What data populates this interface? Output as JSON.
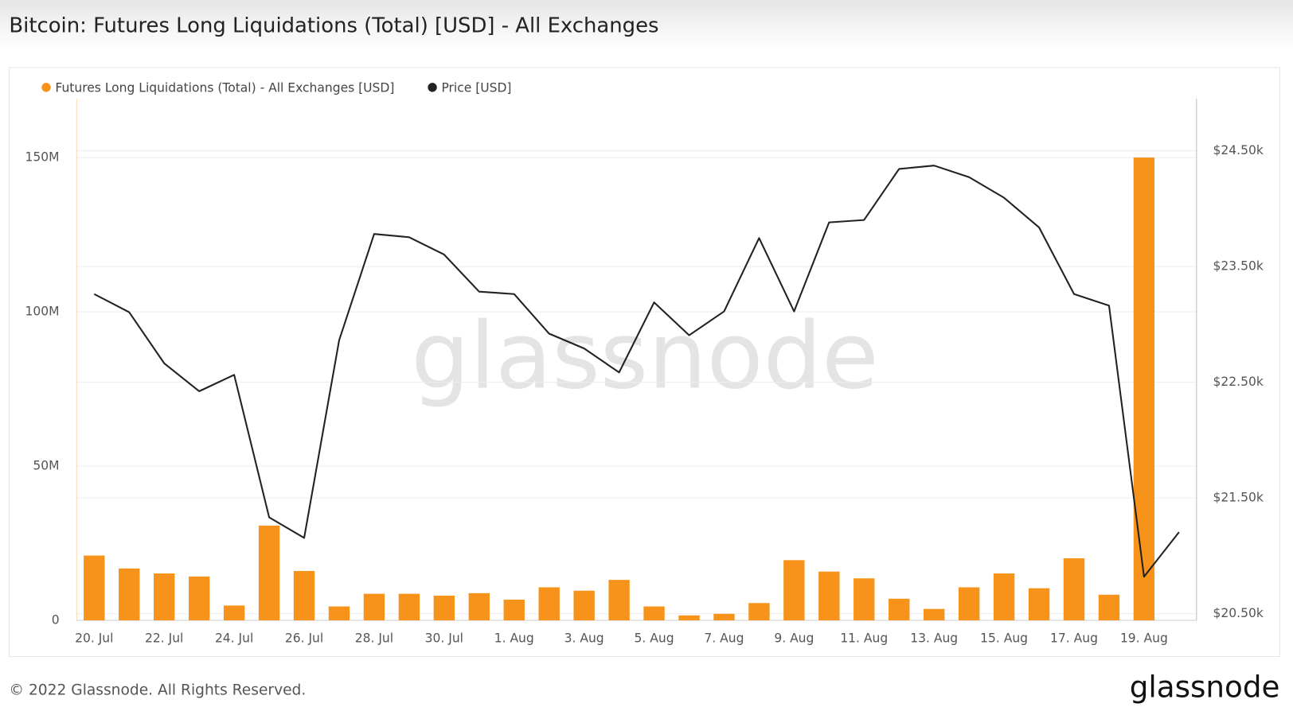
{
  "chart_data": {
    "type": "bar",
    "title": "Bitcoin: Futures Long Liquidations (Total) [USD] - All Exchanges",
    "categories": [
      "20. Jul",
      null,
      "22. Jul",
      null,
      "24. Jul",
      null,
      "26. Jul",
      null,
      "28. Jul",
      null,
      "30. Jul",
      null,
      "1. Aug",
      null,
      "3. Aug",
      null,
      "5. Aug",
      null,
      "7. Aug",
      null,
      "9. Aug",
      null,
      "11. Aug",
      null,
      "13. Aug",
      null,
      "15. Aug",
      null,
      "17. Aug",
      null,
      "19. Aug",
      null
    ],
    "series": [
      {
        "name": "Futures Long Liquidations (Total) - All Exchanges [USD]",
        "type": "bar",
        "color": "#f7931a",
        "values": [
          21000000,
          16800000,
          15200000,
          14200000,
          4800000,
          30700000,
          16000000,
          4500000,
          8600000,
          8600000,
          8000000,
          8800000,
          6700000,
          10700000,
          9600000,
          13100000,
          4500000,
          1600000,
          2100000,
          5600000,
          19500000,
          15800000,
          13600000,
          7000000,
          3700000,
          10700000,
          15200000,
          10400000,
          20100000,
          8300000,
          150000000,
          null
        ]
      },
      {
        "name": "Price [USD]",
        "type": "line",
        "axis": "y2",
        "color": "#222222",
        "values": [
          23262,
          23105,
          22664,
          22422,
          22564,
          21333,
          21155,
          22863,
          23781,
          23753,
          23603,
          23283,
          23262,
          22920,
          22792,
          22585,
          23190,
          22906,
          23112,
          23746,
          23112,
          23881,
          23902,
          24343,
          24372,
          24272,
          24094,
          23838,
          23262,
          23162,
          20820,
          21205
        ]
      }
    ],
    "ylim": [
      0,
      169000000
    ],
    "yticks": [
      0,
      {
        "value": 50000000,
        "label": "50M"
      },
      {
        "value": 100000000,
        "label": "100M"
      },
      {
        "value": 150000000,
        "label": "150M"
      }
    ],
    "y2lim": [
      20443,
      24948
    ],
    "y2ticks": [
      {
        "value": 20500,
        "label": "$20.50k"
      },
      {
        "value": 21500,
        "label": "$21.50k"
      },
      {
        "value": 22500,
        "label": "$22.50k"
      },
      {
        "value": 23500,
        "label": "$23.50k"
      },
      {
        "value": 24500,
        "label": "$24.50k"
      }
    ],
    "grid": true
  },
  "watermark": "glassnode",
  "footer": "© 2022 Glassnode. All Rights Reserved.",
  "logo": "glassnode"
}
